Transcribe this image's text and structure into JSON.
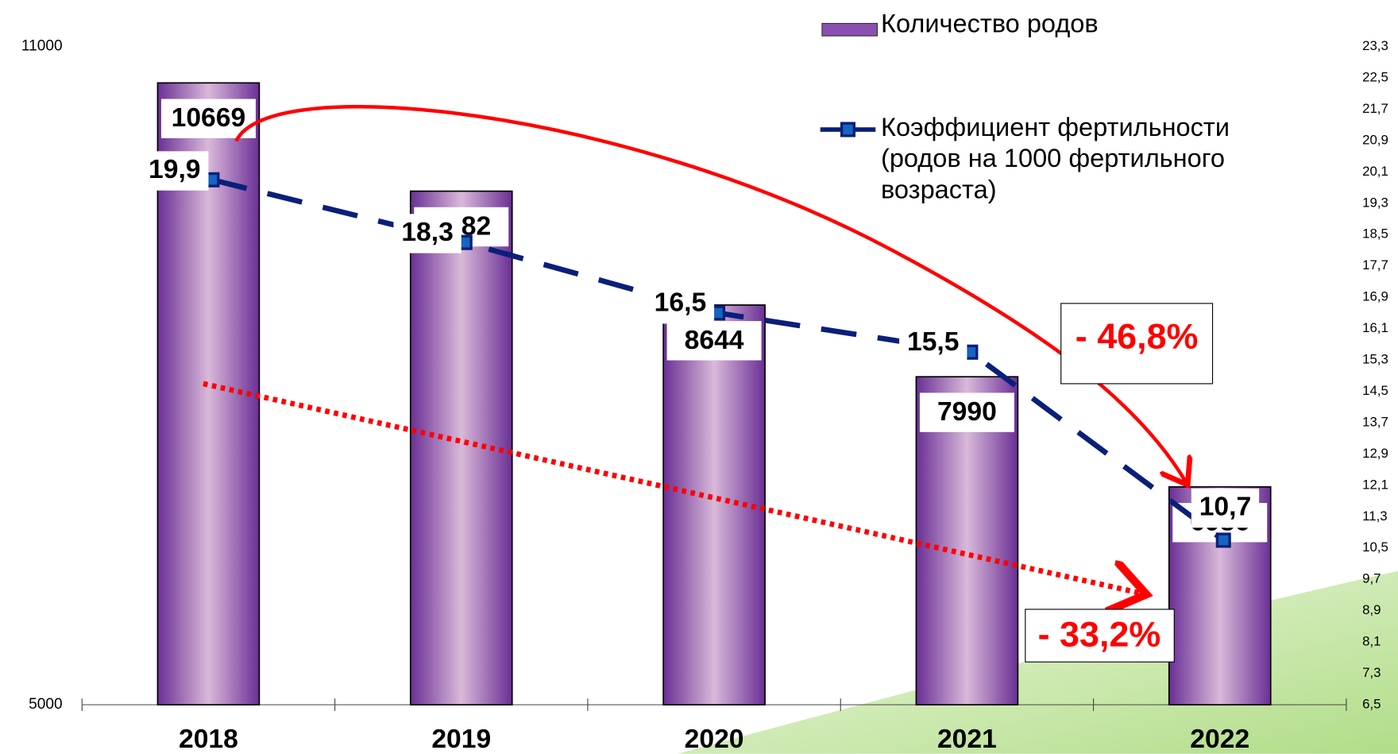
{
  "chart_data": {
    "type": "bar_line",
    "categories": [
      "2018",
      "2019",
      "2020",
      "2021",
      "2022"
    ],
    "series": [
      {
        "name": "Количество родов",
        "color": "#8a4fb0",
        "values": [
          10669,
          9682,
          8644,
          7990,
          6986
        ]
      },
      {
        "name": "Коэффициент фертильности (родов на 1000 фертильного возраста)",
        "color": "#0a1f7a",
        "axis": "y2",
        "values": [
          19.9,
          18.3,
          16.5,
          15.5,
          10.7
        ],
        "value_labels": [
          "19,9",
          "18,3",
          "16,5",
          "15,5",
          "10,7"
        ]
      }
    ],
    "ylim": [
      5000,
      11000
    ],
    "yticks": [
      5000,
      11000
    ],
    "y2lim": [
      6.5,
      23.3
    ],
    "y2ticks": [
      {
        "value": 6.5,
        "label": "6,5"
      },
      {
        "value": 7.3,
        "label": "7,3"
      },
      {
        "value": 8.1,
        "label": "8,1"
      },
      {
        "value": 8.9,
        "label": "8,9"
      },
      {
        "value": 9.7,
        "label": "9,7"
      },
      {
        "value": 10.5,
        "label": "10,5"
      },
      {
        "value": 11.3,
        "label": "11,3"
      },
      {
        "value": 12.1,
        "label": "12,1"
      },
      {
        "value": 12.9,
        "label": "12,9"
      },
      {
        "value": 13.7,
        "label": "13,7"
      },
      {
        "value": 14.5,
        "label": "14,5"
      },
      {
        "value": 15.3,
        "label": "15,3"
      },
      {
        "value": 16.1,
        "label": "16,1"
      },
      {
        "value": 16.9,
        "label": "16,9"
      },
      {
        "value": 17.7,
        "label": "17,7"
      },
      {
        "value": 18.5,
        "label": "18,5"
      },
      {
        "value": 19.3,
        "label": "19,3"
      },
      {
        "value": 20.1,
        "label": "20,1"
      },
      {
        "value": 20.9,
        "label": "20,9"
      },
      {
        "value": 21.7,
        "label": "21,7"
      },
      {
        "value": 22.5,
        "label": "22,5"
      },
      {
        "value": 23.3,
        "label": "23,3"
      }
    ],
    "annotations": [
      "- 46,8%",
      "- 33,2%"
    ]
  }
}
